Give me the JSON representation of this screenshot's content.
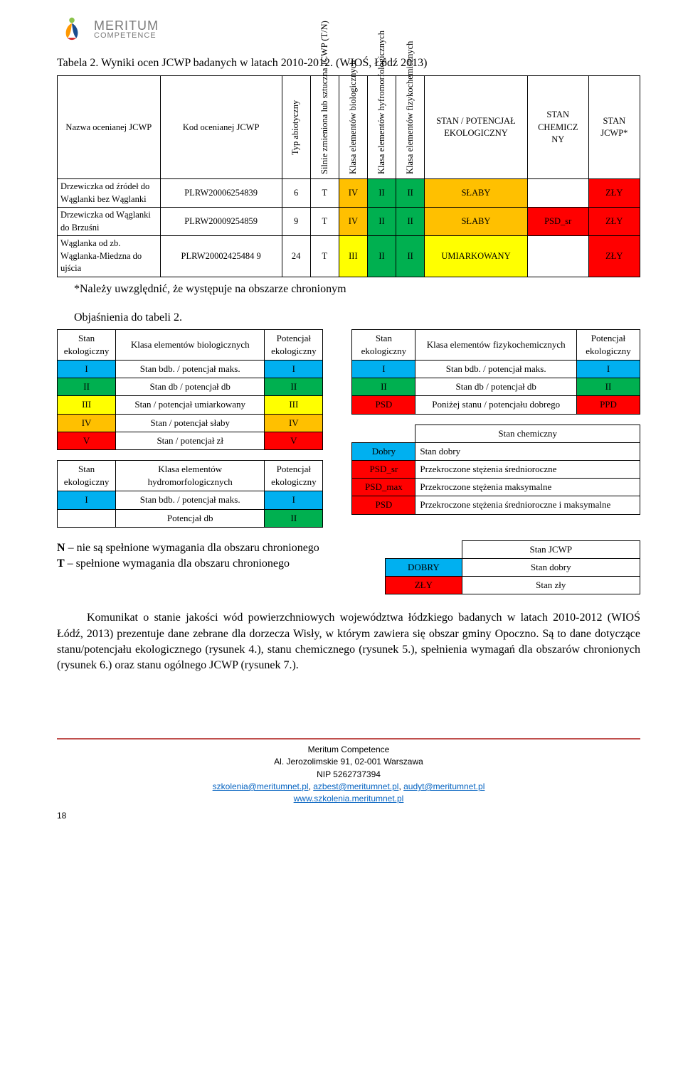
{
  "colors": {
    "red": "#ff0000",
    "green": "#00b050",
    "yellow": "#ffff00",
    "blue": "#00b0f0",
    "orange": "#ffc000",
    "white": "#ffffff",
    "footer_rule": "#c0504d",
    "link": "#0563c1"
  },
  "logo": {
    "line1": "MERITUM",
    "line2": "COMPETENCE"
  },
  "caption": "Tabela 2. Wyniki ocen JCWP badanych w latach 2010-2012. (WIOŚ, Łódź 2013)",
  "main_table": {
    "headers": [
      "Nazwa ocenianej JCWP",
      "Kod ocenianej JCWP",
      "Typ abiotyczny",
      "Silnie zmieniona lub sztuczna JCWP (T/N)",
      "Klasa elementów biologicznych",
      "Klasa elementów hyfromorfologicznych",
      "Klasa elementów fizykochemicznych",
      "STAN / POTENCJAŁ EKOLOGICZNY",
      "STAN CHEMICZ NY",
      "STAN JCWP*"
    ],
    "rows": [
      {
        "name": "Drzewiczka od źródeł do Wąglanki bez Wąglanki",
        "code": "PLRW20006254839",
        "typ": "6",
        "tn": "T",
        "bio": {
          "v": "IV",
          "bg": "#ffc000"
        },
        "hyf": {
          "v": "II",
          "bg": "#00b050"
        },
        "fiz": {
          "v": "II",
          "bg": "#00b050"
        },
        "eko": {
          "v": "SŁABY",
          "bg": "#ffc000"
        },
        "chem": {
          "v": "",
          "bg": "#ffffff"
        },
        "jcwp": {
          "v": "ZŁY",
          "bg": "#ff0000"
        }
      },
      {
        "name": "Drzewiczka od Wąglanki do Brzuśni",
        "code": "PLRW20009254859",
        "typ": "9",
        "tn": "T",
        "bio": {
          "v": "IV",
          "bg": "#ffc000"
        },
        "hyf": {
          "v": "II",
          "bg": "#00b050"
        },
        "fiz": {
          "v": "II",
          "bg": "#00b050"
        },
        "eko": {
          "v": "SŁABY",
          "bg": "#ffc000"
        },
        "chem": {
          "v": "PSD_sr",
          "bg": "#ff0000"
        },
        "jcwp": {
          "v": "ZŁY",
          "bg": "#ff0000"
        }
      },
      {
        "name": "Wąglanka od zb. Wąglanka-Miedzna do ujścia",
        "code": "PLRW20002425484 9",
        "typ": "24",
        "tn": "T",
        "bio": {
          "v": "III",
          "bg": "#ffff00"
        },
        "hyf": {
          "v": "II",
          "bg": "#00b050"
        },
        "fiz": {
          "v": "II",
          "bg": "#00b050"
        },
        "eko": {
          "v": "UMIARKOWANY",
          "bg": "#ffff00"
        },
        "chem": {
          "v": "",
          "bg": "#ffffff"
        },
        "jcwp": {
          "v": "ZŁY",
          "bg": "#ff0000"
        }
      }
    ]
  },
  "note": "*Należy uwzględnić, że występuje na obszarze chronionym",
  "legend_title": "Objaśnienia do tabeli 2.",
  "legend_bio": {
    "header": [
      "Stan ekologiczny",
      "Klasa elementów biologicznych",
      "Potencjał ekologiczny"
    ],
    "rows": [
      {
        "c1": {
          "v": "I",
          "bg": "#00b0f0"
        },
        "c2": "Stan bdb. / potencjał maks.",
        "c3": {
          "v": "I",
          "bg": "#00b0f0"
        }
      },
      {
        "c1": {
          "v": "II",
          "bg": "#00b050"
        },
        "c2": "Stan db / potencjał db",
        "c3": {
          "v": "II",
          "bg": "#00b050"
        }
      },
      {
        "c1": {
          "v": "III",
          "bg": "#ffff00"
        },
        "c2": "Stan / potencjał umiarkowany",
        "c3": {
          "v": "III",
          "bg": "#ffff00"
        }
      },
      {
        "c1": {
          "v": "IV",
          "bg": "#ffc000"
        },
        "c2": "Stan / potencjał słaby",
        "c3": {
          "v": "IV",
          "bg": "#ffc000"
        }
      },
      {
        "c1": {
          "v": "V",
          "bg": "#ff0000"
        },
        "c2": "Stan / potencjał zł",
        "c3": {
          "v": "V",
          "bg": "#ff0000"
        }
      }
    ]
  },
  "legend_hydro": {
    "header": [
      "Stan ekologiczny",
      "Klasa elementów hydromorfologicznych",
      "Potencjał ekologiczny"
    ],
    "rows": [
      {
        "c1": {
          "v": "I",
          "bg": "#00b0f0"
        },
        "c2": "Stan bdb. / potencjał maks.",
        "c3": {
          "v": "I",
          "bg": "#00b0f0"
        }
      },
      {
        "c1": {
          "v": "",
          "bg": "#ffffff"
        },
        "c2": "Potencjał db",
        "c3": {
          "v": "II",
          "bg": "#00b050"
        }
      }
    ]
  },
  "legend_fiz": {
    "header": [
      "Stan ekologiczny",
      "Klasa elementów fizykochemicznych",
      "Potencjał ekologiczny"
    ],
    "rows": [
      {
        "c1": {
          "v": "I",
          "bg": "#00b0f0"
        },
        "c2": "Stan bdb. / potencjał maks.",
        "c3": {
          "v": "I",
          "bg": "#00b0f0"
        }
      },
      {
        "c1": {
          "v": "II",
          "bg": "#00b050"
        },
        "c2": "Stan db / potencjał db",
        "c3": {
          "v": "II",
          "bg": "#00b050"
        }
      },
      {
        "c1": {
          "v": "PSD",
          "bg": "#ff0000"
        },
        "c2": "Poniżej stanu / potencjału dobrego",
        "c3": {
          "v": "PPD",
          "bg": "#ff0000"
        }
      }
    ]
  },
  "legend_chem": {
    "header": [
      "",
      "Stan chemiczny"
    ],
    "rows": [
      {
        "c1": {
          "v": "Dobry",
          "bg": "#00b0f0"
        },
        "c2": "Stan dobry"
      },
      {
        "c1": {
          "v": "PSD_sr",
          "bg": "#ff0000"
        },
        "c2": "Przekroczone stężenia średnioroczne"
      },
      {
        "c1": {
          "v": "PSD_max",
          "bg": "#ff0000"
        },
        "c2": "Przekroczone stężenia maksymalne"
      },
      {
        "c1": {
          "v": "PSD",
          "bg": "#ff0000"
        },
        "c2": "Przekroczone stężenia średnioroczne i maksymalne"
      }
    ]
  },
  "nt_text": "N – nie są spełnione wymagania dla obszaru chronionego\nT – spełnione wymagania dla obszaru chronionego",
  "nt_table": {
    "header": [
      "",
      "Stan JCWP"
    ],
    "rows": [
      {
        "c1": {
          "v": "DOBRY",
          "bg": "#00b0f0"
        },
        "c2": "Stan dobry"
      },
      {
        "c1": {
          "v": "ZŁY",
          "bg": "#ff0000"
        },
        "c2": "Stan zły"
      }
    ]
  },
  "paragraph": "Komunikat o stanie jakości wód powierzchniowych województwa łódzkiego badanych w latach 2010-2012 (WIOŚ Łódź, 2013) prezentuje dane zebrane dla dorzecza Wisły, w którym zawiera się obszar gminy Opoczno. Są to dane dotyczące stanu/potencjału ekologicznego (rysunek 4.), stanu chemicznego (rysunek 5.), spełnienia wymagań dla obszarów chronionych (rysunek 6.) oraz stanu ogólnego JCWP (rysunek 7.).",
  "footer": {
    "l1": "Meritum Competence",
    "l2": "Al. Jerozolimskie 91, 02-001 Warszawa",
    "l3": "NIP 5262737394",
    "emails": [
      "szkolenia@meritumnet.pl",
      "azbest@meritumnet.pl",
      "audyt@meritumnet.pl"
    ],
    "site": "www.szkolenia.meritumnet.pl"
  },
  "page_num": "18"
}
